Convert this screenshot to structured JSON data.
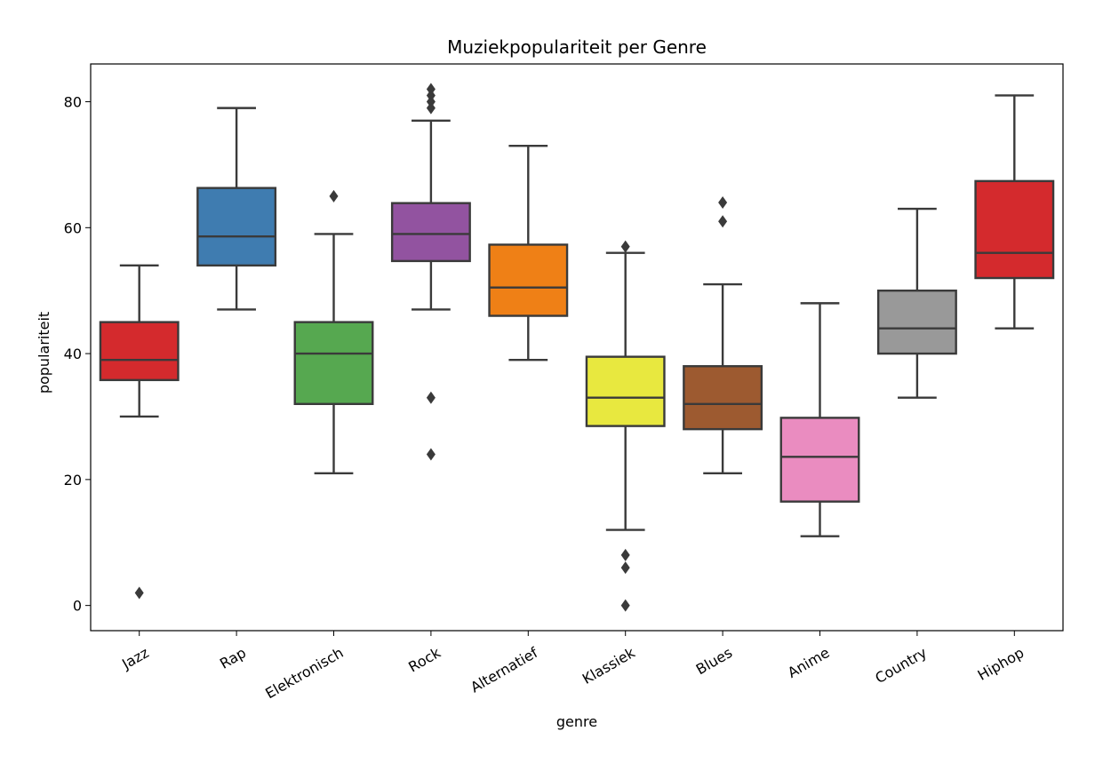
{
  "chart_data": {
    "type": "box",
    "title": "Muziekpopulariteit per Genre",
    "xlabel": "genre",
    "ylabel": "populariteit",
    "ylim": [
      -4,
      86
    ],
    "yticks": [
      0,
      20,
      40,
      60,
      80
    ],
    "grid": false,
    "categories": [
      "Jazz",
      "Rap",
      "Elektronisch",
      "Rock",
      "Alternatief",
      "Klassiek",
      "Blues",
      "Anime",
      "Country",
      "Hiphop"
    ],
    "colors": [
      "#d42a2d",
      "#3f7cb0",
      "#56a850",
      "#9253a0",
      "#ef8016",
      "#e8e83f",
      "#9d5a30",
      "#ea8cc0",
      "#999999",
      "#d42a2d"
    ],
    "boxes": [
      {
        "whisker_low": 30,
        "q1": 35.8,
        "median": 39,
        "q3": 45,
        "whisker_high": 54,
        "outliers": [
          2
        ]
      },
      {
        "whisker_low": 47,
        "q1": 54,
        "median": 58.6,
        "q3": 66.3,
        "whisker_high": 79,
        "outliers": []
      },
      {
        "whisker_low": 21,
        "q1": 32,
        "median": 40,
        "q3": 45,
        "whisker_high": 59,
        "outliers": [
          65
        ]
      },
      {
        "whisker_low": 47,
        "q1": 54.7,
        "median": 59,
        "q3": 63.9,
        "whisker_high": 77,
        "outliers": [
          82,
          81,
          80,
          79,
          33,
          24
        ]
      },
      {
        "whisker_low": 39,
        "q1": 46,
        "median": 50.5,
        "q3": 57.3,
        "whisker_high": 73,
        "outliers": []
      },
      {
        "whisker_low": 12,
        "q1": 28.5,
        "median": 33,
        "q3": 39.5,
        "whisker_high": 56,
        "outliers": [
          57,
          8,
          6,
          0
        ]
      },
      {
        "whisker_low": 21,
        "q1": 28,
        "median": 32,
        "q3": 38,
        "whisker_high": 51,
        "outliers": [
          64,
          61
        ]
      },
      {
        "whisker_low": 11,
        "q1": 16.5,
        "median": 23.6,
        "q3": 29.8,
        "whisker_high": 48,
        "outliers": []
      },
      {
        "whisker_low": 33,
        "q1": 40,
        "median": 44,
        "q3": 50,
        "whisker_high": 63,
        "outliers": []
      },
      {
        "whisker_low": 44,
        "q1": 52,
        "median": 56,
        "q3": 67.4,
        "whisker_high": 81,
        "outliers": []
      }
    ]
  }
}
